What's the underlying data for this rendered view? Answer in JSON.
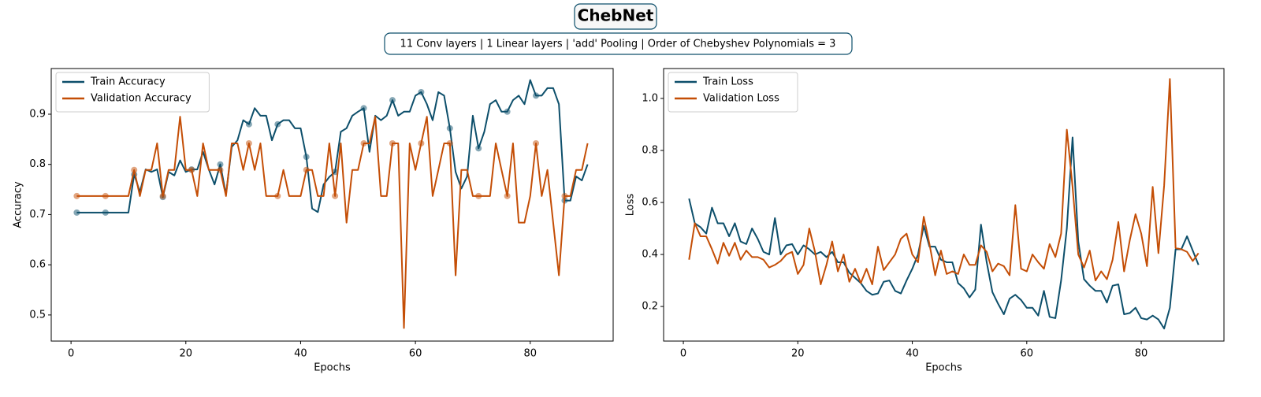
{
  "figure": {
    "title": "ChebNet",
    "subtitle": "11 Conv layers | 1 Linear layers | 'add' Pooling | Order of Chebyshev Polynomials = 3"
  },
  "chart_data": [
    {
      "type": "line",
      "xlabel": "Epochs",
      "ylabel": "Accuracy",
      "legend": "upper left",
      "marker_every": 5,
      "xlim": [
        -3.45,
        94.45
      ],
      "xticks": [
        0,
        20,
        40,
        60,
        80
      ],
      "ylim": [
        0.448,
        0.991
      ],
      "yticks": [
        0.5,
        0.6,
        0.7,
        0.8,
        0.9
      ],
      "x": [
        1,
        2,
        3,
        4,
        5,
        6,
        7,
        8,
        9,
        10,
        11,
        12,
        13,
        14,
        15,
        16,
        17,
        18,
        19,
        20,
        21,
        22,
        23,
        24,
        25,
        26,
        27,
        28,
        29,
        30,
        31,
        32,
        33,
        34,
        35,
        36,
        37,
        38,
        39,
        40,
        41,
        42,
        43,
        44,
        45,
        46,
        47,
        48,
        49,
        50,
        51,
        52,
        53,
        54,
        55,
        56,
        57,
        58,
        59,
        60,
        61,
        62,
        63,
        64,
        65,
        66,
        67,
        68,
        69,
        70,
        71,
        72,
        73,
        74,
        75,
        76,
        77,
        78,
        79,
        80,
        81,
        82,
        83,
        84,
        85,
        86,
        87,
        88,
        89,
        90
      ],
      "series": [
        {
          "name": "Train Accuracy",
          "color": "#0d4f6b",
          "values": [
            0.704,
            0.704,
            0.704,
            0.704,
            0.704,
            0.704,
            0.704,
            0.704,
            0.704,
            0.704,
            0.78,
            0.745,
            0.79,
            0.785,
            0.79,
            0.735,
            0.785,
            0.778,
            0.808,
            0.785,
            0.79,
            0.79,
            0.825,
            0.79,
            0.76,
            0.8,
            0.74,
            0.835,
            0.848,
            0.888,
            0.88,
            0.912,
            0.897,
            0.897,
            0.848,
            0.88,
            0.888,
            0.888,
            0.872,
            0.872,
            0.815,
            0.712,
            0.705,
            0.76,
            0.775,
            0.785,
            0.865,
            0.872,
            0.897,
            0.905,
            0.912,
            0.825,
            0.897,
            0.888,
            0.897,
            0.928,
            0.897,
            0.905,
            0.905,
            0.937,
            0.944,
            0.92,
            0.888,
            0.944,
            0.937,
            0.872,
            0.785,
            0.752,
            0.776,
            0.897,
            0.832,
            0.865,
            0.92,
            0.928,
            0.905,
            0.905,
            0.928,
            0.937,
            0.92,
            0.968,
            0.937,
            0.937,
            0.952,
            0.952,
            0.92,
            0.728,
            0.728,
            0.776,
            0.768,
            0.8
          ]
        },
        {
          "name": "Validation Accuracy",
          "color": "#c44e06",
          "values": [
            0.737,
            0.737,
            0.737,
            0.737,
            0.737,
            0.737,
            0.737,
            0.737,
            0.737,
            0.737,
            0.789,
            0.737,
            0.789,
            0.789,
            0.842,
            0.737,
            0.789,
            0.789,
            0.895,
            0.789,
            0.789,
            0.737,
            0.842,
            0.789,
            0.789,
            0.789,
            0.737,
            0.842,
            0.842,
            0.789,
            0.842,
            0.789,
            0.842,
            0.737,
            0.737,
            0.737,
            0.789,
            0.737,
            0.737,
            0.737,
            0.789,
            0.789,
            0.737,
            0.737,
            0.842,
            0.737,
            0.842,
            0.684,
            0.789,
            0.789,
            0.842,
            0.842,
            0.895,
            0.737,
            0.737,
            0.842,
            0.842,
            0.474,
            0.842,
            0.789,
            0.842,
            0.895,
            0.737,
            0.789,
            0.842,
            0.842,
            0.579,
            0.789,
            0.789,
            0.737,
            0.737,
            0.737,
            0.737,
            0.842,
            0.789,
            0.737,
            0.842,
            0.684,
            0.684,
            0.737,
            0.842,
            0.737,
            0.789,
            0.684,
            0.579,
            0.737,
            0.737,
            0.789,
            0.789,
            0.842
          ]
        }
      ]
    },
    {
      "type": "line",
      "xlabel": "Epochs",
      "ylabel": "Loss",
      "legend": "upper left",
      "xlim": [
        -3.45,
        94.45
      ],
      "xticks": [
        0,
        20,
        40,
        60,
        80
      ],
      "ylim": [
        0.067,
        1.115
      ],
      "yticks": [
        0.2,
        0.4,
        0.6,
        0.8,
        {
          "value": 1,
          "label": "1.0"
        }
      ],
      "x": [
        1,
        2,
        3,
        4,
        5,
        6,
        7,
        8,
        9,
        10,
        11,
        12,
        13,
        14,
        15,
        16,
        17,
        18,
        19,
        20,
        21,
        22,
        23,
        24,
        25,
        26,
        27,
        28,
        29,
        30,
        31,
        32,
        33,
        34,
        35,
        36,
        37,
        38,
        39,
        40,
        41,
        42,
        43,
        44,
        45,
        46,
        47,
        48,
        49,
        50,
        51,
        52,
        53,
        54,
        55,
        56,
        57,
        58,
        59,
        60,
        61,
        62,
        63,
        64,
        65,
        66,
        67,
        68,
        69,
        70,
        71,
        72,
        73,
        74,
        75,
        76,
        77,
        78,
        79,
        80,
        81,
        82,
        83,
        84,
        85,
        86,
        87,
        88,
        89,
        90
      ],
      "series": [
        {
          "name": "Train Loss",
          "color": "#0d4f6b",
          "values": [
            0.615,
            0.52,
            0.505,
            0.48,
            0.58,
            0.52,
            0.52,
            0.47,
            0.52,
            0.45,
            0.44,
            0.5,
            0.46,
            0.41,
            0.4,
            0.54,
            0.4,
            0.435,
            0.44,
            0.4,
            0.435,
            0.42,
            0.4,
            0.41,
            0.39,
            0.41,
            0.37,
            0.37,
            0.33,
            0.31,
            0.29,
            0.26,
            0.245,
            0.25,
            0.295,
            0.3,
            0.26,
            0.25,
            0.3,
            0.345,
            0.4,
            0.51,
            0.43,
            0.43,
            0.38,
            0.37,
            0.37,
            0.29,
            0.27,
            0.235,
            0.265,
            0.515,
            0.37,
            0.255,
            0.21,
            0.17,
            0.23,
            0.245,
            0.225,
            0.195,
            0.195,
            0.165,
            0.26,
            0.16,
            0.155,
            0.3,
            0.5,
            0.85,
            0.45,
            0.305,
            0.28,
            0.26,
            0.26,
            0.215,
            0.28,
            0.285,
            0.17,
            0.175,
            0.195,
            0.155,
            0.15,
            0.165,
            0.15,
            0.115,
            0.195,
            0.42,
            0.42,
            0.47,
            0.415,
            0.36
          ]
        },
        {
          "name": "Validation Loss",
          "color": "#c44e06",
          "values": [
            0.38,
            0.52,
            0.47,
            0.47,
            0.42,
            0.365,
            0.445,
            0.395,
            0.445,
            0.38,
            0.415,
            0.39,
            0.39,
            0.38,
            0.35,
            0.36,
            0.375,
            0.4,
            0.41,
            0.325,
            0.36,
            0.5,
            0.41,
            0.285,
            0.36,
            0.45,
            0.335,
            0.4,
            0.295,
            0.345,
            0.29,
            0.345,
            0.285,
            0.43,
            0.34,
            0.37,
            0.4,
            0.46,
            0.48,
            0.4,
            0.37,
            0.545,
            0.44,
            0.32,
            0.415,
            0.325,
            0.335,
            0.325,
            0.4,
            0.36,
            0.36,
            0.435,
            0.41,
            0.335,
            0.365,
            0.355,
            0.32,
            0.59,
            0.345,
            0.335,
            0.4,
            0.37,
            0.345,
            0.44,
            0.39,
            0.48,
            0.88,
            0.66,
            0.4,
            0.35,
            0.415,
            0.3,
            0.335,
            0.305,
            0.38,
            0.525,
            0.335,
            0.455,
            0.555,
            0.48,
            0.355,
            0.66,
            0.405,
            0.665,
            1.075,
            0.425,
            0.42,
            0.41,
            0.375,
            0.405
          ]
        }
      ]
    }
  ]
}
